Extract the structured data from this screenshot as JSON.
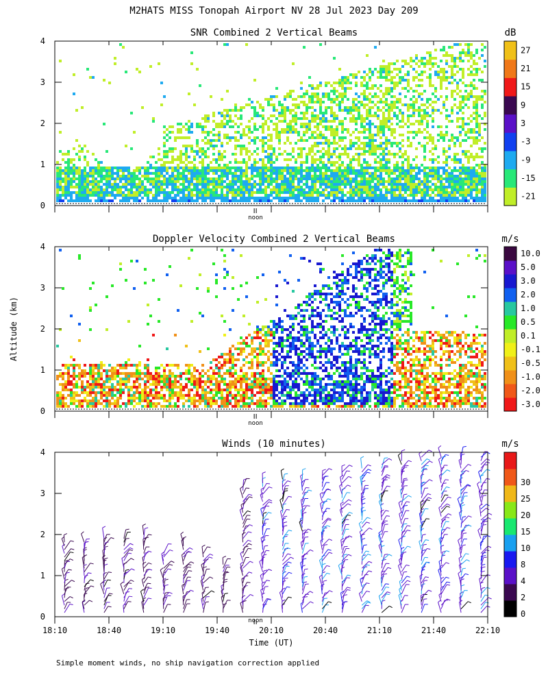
{
  "title": "M2HATS MISS Tonopah Airport NV  28 Jul 2023 Day 209",
  "footnote": "Simple moment winds, no ship navigation correction applied",
  "ylabel": "Altitude (km)",
  "xlabel": "Time (UT)",
  "noon_label": "noon",
  "chart_data": [
    {
      "type": "heatmap",
      "title": "SNR Combined 2 Vertical Beams",
      "x_range": [
        "18:10",
        "22:10"
      ],
      "ylim": [
        0,
        4
      ],
      "yticks": [
        "0",
        "1",
        "2",
        "3",
        "4"
      ],
      "colorbar": {
        "unit": "dB",
        "ticks": [
          "-21",
          "-15",
          "-9",
          "-3",
          "3",
          "9",
          "15",
          "21",
          "27"
        ],
        "colors": [
          "#c0ee28",
          "#28e878",
          "#1eaaf0",
          "#1040f0",
          "#5a10c8",
          "#3a0850",
          "#f01818",
          "#f07818",
          "#f0c018"
        ]
      }
    },
    {
      "type": "heatmap",
      "title": "Doppler Velocity Combined 2 Vertical Beams",
      "x_range": [
        "18:10",
        "22:10"
      ],
      "ylim": [
        0,
        4
      ],
      "yticks": [
        "0",
        "1",
        "2",
        "3",
        "4"
      ],
      "colorbar": {
        "unit": "m/s",
        "ticks": [
          "-3.0",
          "-2.0",
          "-1.0",
          "-0.5",
          "-0.1",
          "0.1",
          "0.5",
          "1.0",
          "2.0",
          "3.0",
          "5.0",
          "10.0"
        ],
        "colors": [
          "#f01818",
          "#f05818",
          "#f09018",
          "#f0c018",
          "#f0f018",
          "#c0ee28",
          "#28e828",
          "#28c8a0",
          "#1060f0",
          "#1818d0",
          "#5a10c8",
          "#3a0840"
        ]
      }
    },
    {
      "type": "scatter",
      "title": "Winds (10 minutes)",
      "x_range": [
        "18:10",
        "22:10"
      ],
      "xticks": [
        "18:10",
        "18:40",
        "19:10",
        "19:40",
        "20:10",
        "20:40",
        "21:10",
        "21:40",
        "22:10"
      ],
      "ylim": [
        0,
        4
      ],
      "yticks": [
        "0",
        "1",
        "2",
        "3",
        "4"
      ],
      "colorbar": {
        "unit": "m/s",
        "ticks": [
          "0",
          "2",
          "4",
          "8",
          "10",
          "15",
          "20",
          "25",
          "30"
        ],
        "colors": [
          "#000000",
          "#3a0850",
          "#5a10c8",
          "#1818f0",
          "#18a0f0",
          "#18e870",
          "#88e818",
          "#f0b818",
          "#f05818",
          "#e81818"
        ]
      }
    }
  ]
}
